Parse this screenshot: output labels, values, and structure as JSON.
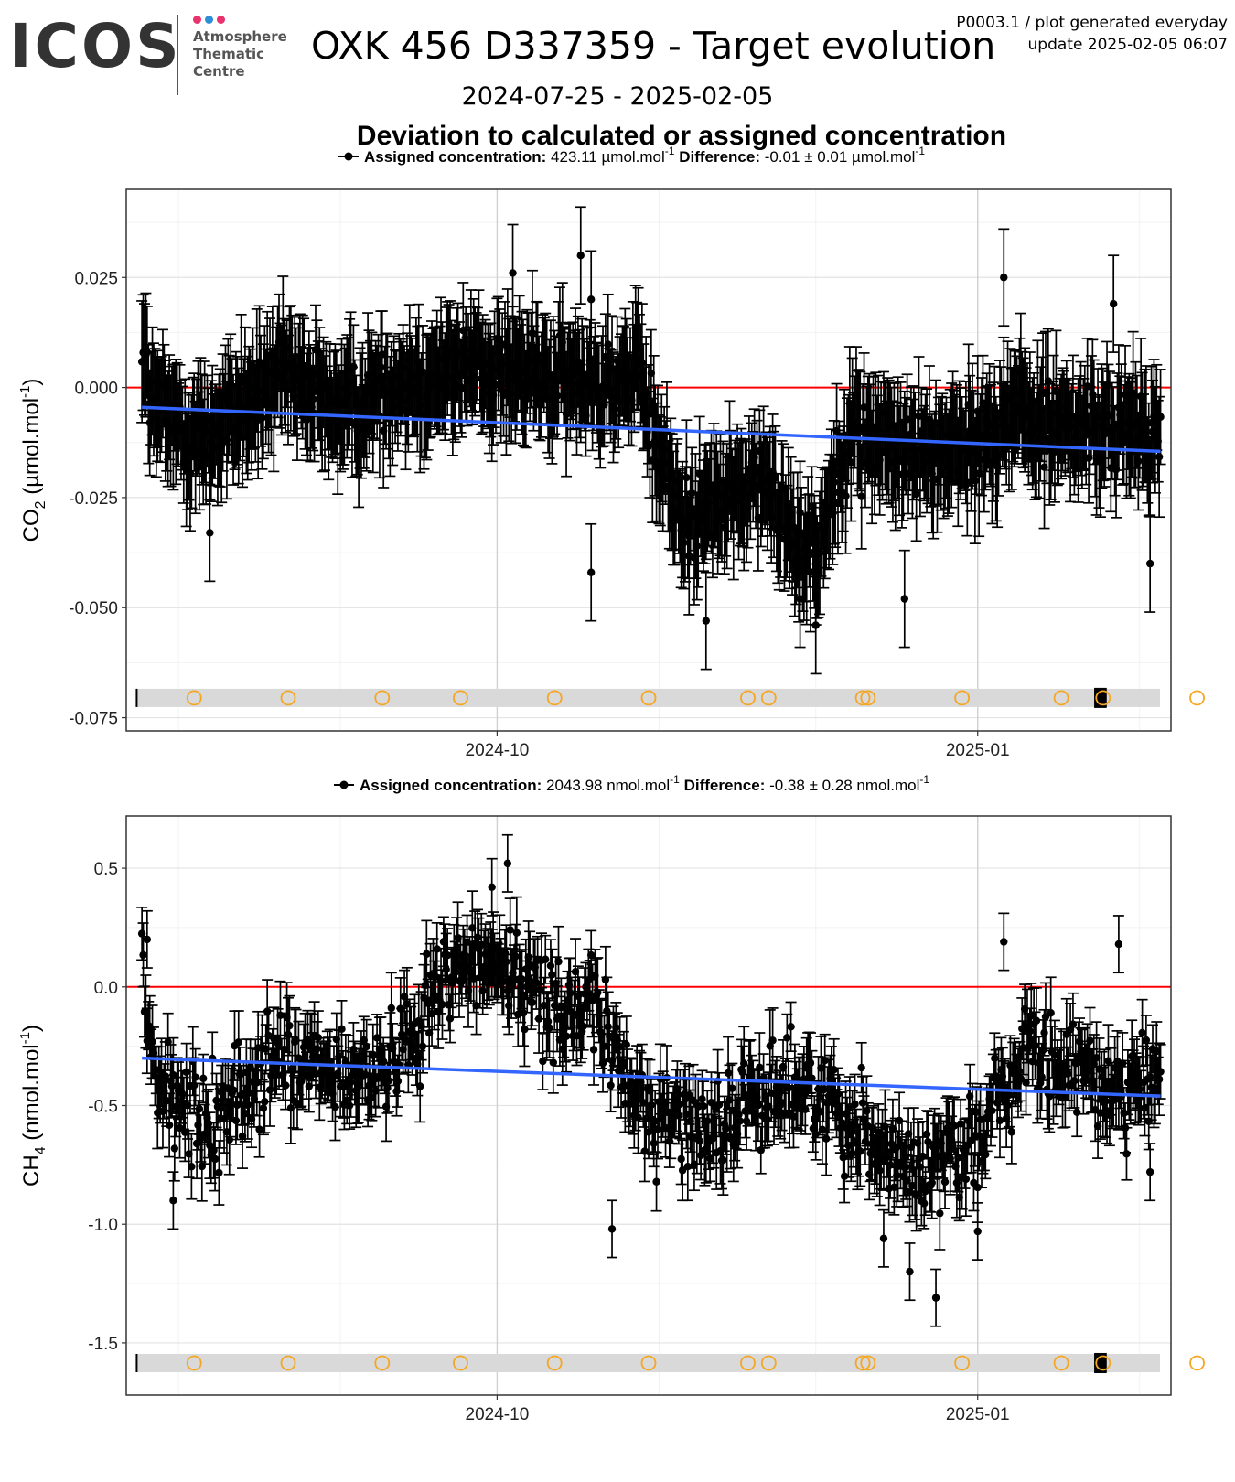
{
  "header": {
    "logo_text": "ICOS",
    "logo_lines": [
      "Atmosphere",
      "Thematic",
      "Centre"
    ],
    "logo_dot_colors": [
      "#e8336e",
      "#2f8fd6",
      "#e8336e"
    ],
    "title": "OXK 456 D337359 - Target evolution",
    "meta_line1": "P0003.1 / plot generated everyday",
    "meta_line2": "update  2025-02-05 06:07",
    "date_range": "2024-07-25 - 2025-02-05",
    "plot_title": "Deviation to calculated or assigned concentration"
  },
  "colors": {
    "points": "#000000",
    "trend": "#3366ff",
    "zero_line": "#ff0000",
    "markers": "#f5a623",
    "strip": "#d9d9d9"
  },
  "chart_data": [
    {
      "type": "scatter",
      "species": "CO2",
      "ylabel_main": "CO",
      "ylabel_sub": "2",
      "ylabel_unit": "(µmol.mol",
      "ylabel_exp": "-1",
      "legend": {
        "assigned_label": "Assigned concentration:",
        "assigned_value": "423.11",
        "assigned_unit": "µmol.mol",
        "difference_label": "Difference:",
        "difference_value": "-0.01 ± 0.01",
        "difference_unit": "µmol.mol",
        "exp": "-1"
      },
      "x_range": [
        "2024-07-22",
        "2025-02-07"
      ],
      "x_ticks": [
        "2024-10",
        "2025-01"
      ],
      "x_tick_dates": [
        "2024-10-01",
        "2025-01-01"
      ],
      "ylim": [
        -0.078,
        0.045
      ],
      "y_ticks": [
        0.025,
        0.0,
        -0.025,
        -0.05,
        -0.075
      ],
      "y_tick_labels": [
        "0.025",
        "0.000",
        "-0.025",
        "-0.050",
        "-0.075"
      ],
      "grid": true,
      "trend_start": [
        "2024-07-25",
        -0.0045
      ],
      "trend_end": [
        "2025-02-05",
        -0.0145
      ],
      "anchors": [
        [
          "2024-07-25",
          0.012
        ],
        [
          "2024-07-27",
          -0.005
        ],
        [
          "2024-08-05",
          -0.012
        ],
        [
          "2024-08-20",
          0.002
        ],
        [
          "2024-09-01",
          -0.005
        ],
        [
          "2024-09-15",
          0.002
        ],
        [
          "2024-09-28",
          0.005
        ],
        [
          "2024-10-15",
          0.001
        ],
        [
          "2024-10-28",
          0.002
        ],
        [
          "2024-11-05",
          -0.03
        ],
        [
          "2024-11-20",
          -0.022
        ],
        [
          "2024-12-01",
          -0.038
        ],
        [
          "2024-12-07",
          -0.01
        ],
        [
          "2024-12-20",
          -0.015
        ],
        [
          "2025-01-01",
          -0.012
        ],
        [
          "2025-01-07",
          -0.005
        ],
        [
          "2025-01-20",
          -0.01
        ],
        [
          "2025-02-05",
          -0.01
        ]
      ],
      "noise": 0.009,
      "err": 0.011,
      "labeled_points": [
        [
          "2024-10-04",
          0.026
        ],
        [
          "2024-10-17",
          0.03
        ],
        [
          "2024-10-19",
          0.02
        ],
        [
          "2024-11-10",
          -0.053
        ],
        [
          "2024-12-01",
          -0.054
        ],
        [
          "2024-11-28",
          -0.048
        ],
        [
          "2024-10-19",
          -0.042
        ],
        [
          "2024-08-07",
          -0.033
        ],
        [
          "2024-12-18",
          -0.048
        ],
        [
          "2025-01-06",
          0.025
        ],
        [
          "2025-01-27",
          0.019
        ],
        [
          "2025-02-03",
          -0.04
        ]
      ],
      "strip_y": -0.0705,
      "markers": [
        "2024-08-04",
        "2024-08-22",
        "2024-09-09",
        "2024-09-24",
        "2024-10-12",
        "2024-10-30",
        "2024-11-18",
        "2024-11-22",
        "2024-12-10",
        "2024-12-11",
        "2024-12-29",
        "2025-01-17",
        "2025-01-25",
        "2025-02-12"
      ],
      "strip_start_date": "2024-07-24",
      "black_box": [
        "2025-01-24",
        "2025-01-25"
      ]
    },
    {
      "type": "scatter",
      "species": "CH4",
      "ylabel_main": "CH",
      "ylabel_sub": "4",
      "ylabel_unit": "(nmol.mol",
      "ylabel_exp": "-1",
      "legend": {
        "assigned_label": "Assigned concentration:",
        "assigned_value": "2043.98",
        "assigned_unit": "nmol.mol",
        "difference_label": "Difference:",
        "difference_value": "-0.38 ± 0.28",
        "difference_unit": "nmol.mol",
        "exp": "-1"
      },
      "x_range": [
        "2024-07-22",
        "2025-02-07"
      ],
      "x_ticks": [
        "2024-10",
        "2025-01"
      ],
      "x_tick_dates": [
        "2024-10-01",
        "2025-01-01"
      ],
      "ylim": [
        -1.72,
        0.72
      ],
      "y_ticks": [
        0.5,
        0.0,
        -0.5,
        -1.0,
        -1.5
      ],
      "y_tick_labels": [
        "0.5",
        "0.0",
        "-0.5",
        "-1.0",
        "-1.5"
      ],
      "grid": true,
      "trend_start": [
        "2024-07-25",
        -0.3
      ],
      "trend_end": [
        "2025-02-05",
        -0.46
      ],
      "anchors": [
        [
          "2024-07-25",
          0.0
        ],
        [
          "2024-07-28",
          -0.4
        ],
        [
          "2024-08-05",
          -0.6
        ],
        [
          "2024-08-20",
          -0.3
        ],
        [
          "2024-09-01",
          -0.4
        ],
        [
          "2024-09-10",
          -0.35
        ],
        [
          "2024-09-22",
          0.1
        ],
        [
          "2024-10-01",
          0.1
        ],
        [
          "2024-10-10",
          -0.05
        ],
        [
          "2024-10-20",
          -0.1
        ],
        [
          "2024-10-28",
          -0.5
        ],
        [
          "2024-11-10",
          -0.6
        ],
        [
          "2024-11-25",
          -0.4
        ],
        [
          "2024-12-05",
          -0.5
        ],
        [
          "2024-12-20",
          -0.8
        ],
        [
          "2025-01-01",
          -0.6
        ],
        [
          "2025-01-10",
          -0.3
        ],
        [
          "2025-01-25",
          -0.4
        ],
        [
          "2025-02-05",
          -0.4
        ]
      ],
      "noise": 0.2,
      "err": 0.12,
      "labeled_points": [
        [
          "2024-10-03",
          0.52
        ],
        [
          "2024-09-30",
          0.42
        ],
        [
          "2024-07-26",
          0.2
        ],
        [
          "2024-07-31",
          -0.9
        ],
        [
          "2024-10-23",
          -1.02
        ],
        [
          "2024-12-24",
          -1.31
        ],
        [
          "2024-12-19",
          -1.2
        ],
        [
          "2024-12-14",
          -1.06
        ],
        [
          "2025-01-01",
          -1.03
        ],
        [
          "2025-01-06",
          0.19
        ],
        [
          "2025-01-28",
          0.18
        ],
        [
          "2025-02-03",
          -0.78
        ]
      ],
      "strip_y": -1.585,
      "markers": [
        "2024-08-04",
        "2024-08-22",
        "2024-09-09",
        "2024-09-24",
        "2024-10-12",
        "2024-10-30",
        "2024-11-18",
        "2024-11-22",
        "2024-12-10",
        "2024-12-11",
        "2024-12-29",
        "2025-01-17",
        "2025-01-25",
        "2025-02-12"
      ],
      "strip_start_date": "2024-07-24",
      "black_box": [
        "2025-01-24",
        "2025-01-25"
      ]
    }
  ]
}
